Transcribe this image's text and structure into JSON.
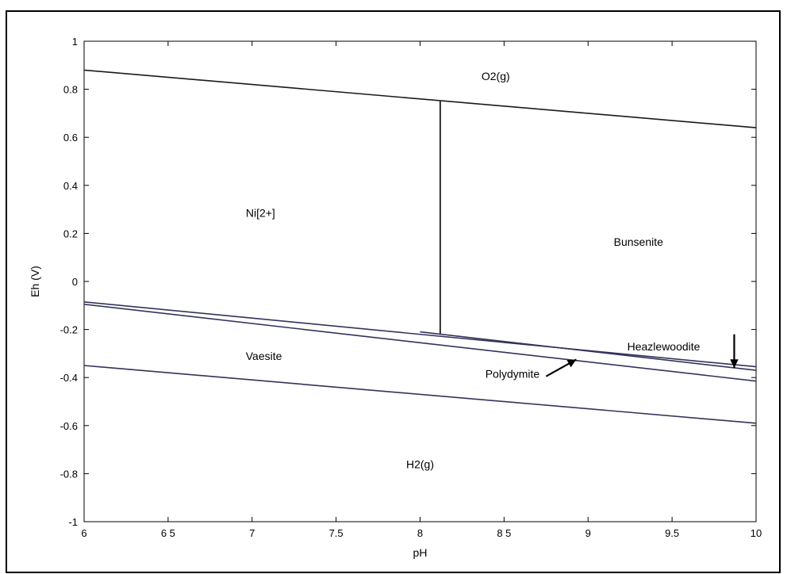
{
  "chart_data": {
    "type": "line",
    "title": "",
    "xlabel": "pH",
    "ylabel": "Eh (V)",
    "xlim": [
      6,
      10
    ],
    "ylim": [
      -1,
      1
    ],
    "x_ticks": [
      6,
      6.5,
      7,
      7.5,
      8,
      8.5,
      9,
      9.5,
      10
    ],
    "x_tick_labels": [
      "6",
      "6 5",
      "7",
      "7.5",
      "8",
      "8 5",
      "9",
      "9.5",
      "10"
    ],
    "y_ticks": [
      1,
      0.8,
      0.6,
      0.4,
      0.2,
      0,
      -0.2,
      -0.4,
      -0.6,
      -0.8,
      -1
    ],
    "y_tick_labels": [
      "1",
      "0.8",
      "0.6",
      "0.4",
      "0.2",
      "0",
      "-0.2",
      "-0.4",
      "-0.6",
      "-0.8",
      "-1"
    ],
    "grid": false,
    "series": [
      {
        "color": "#1a1a1a",
        "points": [
          [
            6,
            0.88
          ],
          [
            10,
            0.64
          ]
        ]
      },
      {
        "color": "#000000",
        "points": [
          [
            8.12,
            0.75
          ],
          [
            8.12,
            -0.22
          ]
        ]
      },
      {
        "color": "#33335a",
        "points": [
          [
            6,
            -0.085
          ],
          [
            10,
            -0.355
          ]
        ]
      },
      {
        "color": "#33335a",
        "points": [
          [
            8.0,
            -0.21
          ],
          [
            10,
            -0.37
          ]
        ]
      },
      {
        "color": "#33335a",
        "points": [
          [
            6,
            -0.095
          ],
          [
            10,
            -0.415
          ]
        ]
      },
      {
        "color": "#33335a",
        "points": [
          [
            6,
            -0.35
          ],
          [
            10,
            -0.59
          ]
        ]
      }
    ],
    "annotations": [
      {
        "text": "O2(g)",
        "x": 8.45,
        "y": 0.855
      },
      {
        "text": "Ni[2+]",
        "x": 7.05,
        "y": 0.285
      },
      {
        "text": "Bunsenite",
        "x": 9.3,
        "y": 0.165
      },
      {
        "text": "Vaesite",
        "x": 7.07,
        "y": -0.31
      },
      {
        "text": "Heazlewoodite",
        "x": 9.45,
        "y": -0.27
      },
      {
        "text": "Polydymite",
        "x": 8.55,
        "y": -0.385
      },
      {
        "text": "H2(g)",
        "x": 8.0,
        "y": -0.76
      }
    ],
    "arrows": [
      {
        "from": [
          8.75,
          -0.395
        ],
        "to": [
          8.93,
          -0.325
        ]
      },
      {
        "from": [
          9.87,
          -0.22
        ],
        "to": [
          9.87,
          -0.36
        ]
      }
    ]
  }
}
